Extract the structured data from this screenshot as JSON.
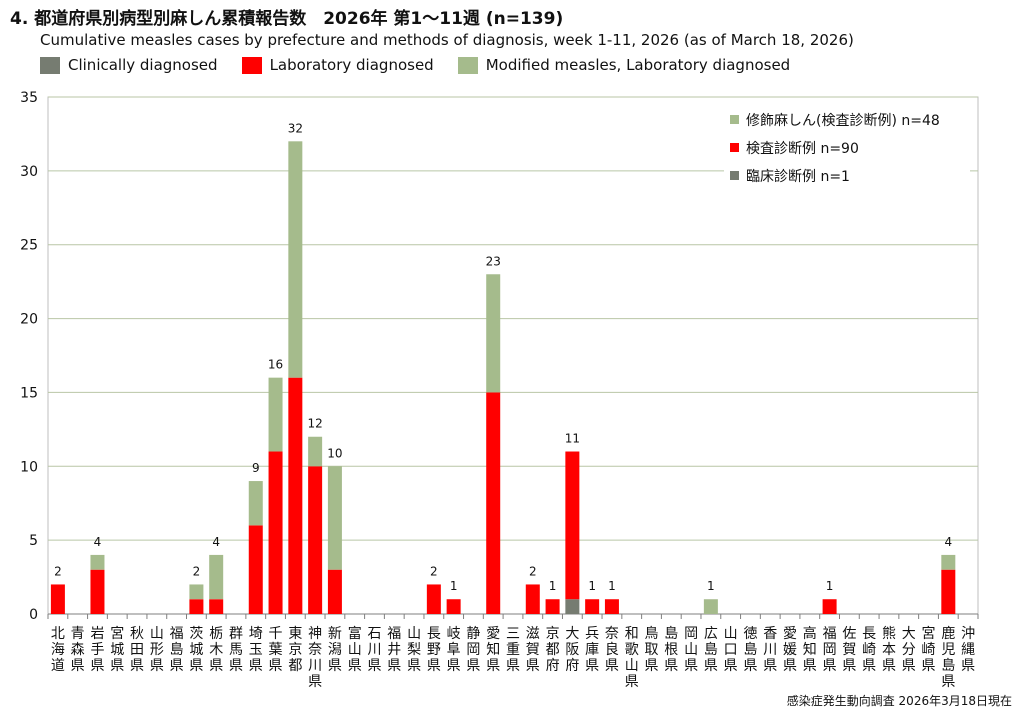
{
  "header": {
    "title": "4. 都道府県別病型別麻しん累積報告数　2026年 第1～11週 (n=139)",
    "subtitle": "Cumulative measles cases by prefecture and methods of diagnosis, week 1-11, 2026 (as of March 18, 2026)"
  },
  "legend_top": [
    {
      "label": "Clinically diagnosed",
      "color": "#767c71"
    },
    {
      "label": "Laboratory diagnosed",
      "color": "#ff0000"
    },
    {
      "label": "Modified measles, Laboratory diagnosed",
      "color": "#a5bb8c"
    }
  ],
  "footer": {
    "source": "感染症発生動向調査 2026年3月18日現在"
  },
  "chart_data": {
    "type": "bar",
    "stacked": true,
    "ylim": [
      0,
      35
    ],
    "yticks": [
      0,
      5,
      10,
      15,
      20,
      25,
      30,
      35
    ],
    "grid": true,
    "legend_position": "top-right",
    "categories": [
      "北海道",
      "青森県",
      "岩手県",
      "宮城県",
      "秋田県",
      "山形県",
      "福島県",
      "茨城県",
      "栃木県",
      "群馬県",
      "埼玉県",
      "千葉県",
      "東京都",
      "神奈川県",
      "新潟県",
      "富山県",
      "石川県",
      "福井県",
      "山梨県",
      "長野県",
      "岐阜県",
      "静岡県",
      "愛知県",
      "三重県",
      "滋賀県",
      "京都府",
      "大阪府",
      "兵庫県",
      "奈良県",
      "和歌山県",
      "鳥取県",
      "島根県",
      "岡山県",
      "広島県",
      "山口県",
      "徳島県",
      "香川県",
      "愛媛県",
      "高知県",
      "福岡県",
      "佐賀県",
      "長崎県",
      "熊本県",
      "大分県",
      "宮崎県",
      "鹿児島県",
      "沖縄県"
    ],
    "series": [
      {
        "name": "臨床診断例 n=1",
        "color": "#767c71",
        "values": [
          0,
          0,
          0,
          0,
          0,
          0,
          0,
          0,
          0,
          0,
          0,
          0,
          0,
          0,
          0,
          0,
          0,
          0,
          0,
          0,
          0,
          0,
          0,
          0,
          0,
          0,
          1,
          0,
          0,
          0,
          0,
          0,
          0,
          0,
          0,
          0,
          0,
          0,
          0,
          0,
          0,
          0,
          0,
          0,
          0,
          0,
          0
        ]
      },
      {
        "name": "検査診断例 n=90",
        "color": "#ff0000",
        "values": [
          2,
          0,
          3,
          0,
          0,
          0,
          0,
          1,
          1,
          0,
          6,
          11,
          16,
          10,
          3,
          0,
          0,
          0,
          0,
          2,
          1,
          0,
          15,
          0,
          2,
          1,
          10,
          1,
          1,
          0,
          0,
          0,
          0,
          0,
          0,
          0,
          0,
          0,
          0,
          1,
          0,
          0,
          0,
          0,
          0,
          3,
          0
        ]
      },
      {
        "name": "修飾麻しん(検査診断例) n=48",
        "color": "#a5bb8c",
        "values": [
          0,
          0,
          1,
          0,
          0,
          0,
          0,
          1,
          3,
          0,
          3,
          5,
          16,
          2,
          7,
          0,
          0,
          0,
          0,
          0,
          0,
          0,
          8,
          0,
          0,
          0,
          0,
          0,
          0,
          0,
          0,
          0,
          0,
          1,
          0,
          0,
          0,
          0,
          0,
          0,
          0,
          0,
          0,
          0,
          0,
          1,
          0
        ]
      }
    ],
    "totals": [
      2,
      0,
      4,
      0,
      0,
      0,
      0,
      2,
      4,
      0,
      9,
      16,
      32,
      12,
      10,
      0,
      0,
      0,
      0,
      2,
      1,
      0,
      23,
      0,
      2,
      1,
      11,
      1,
      1,
      0,
      0,
      0,
      0,
      1,
      0,
      0,
      0,
      0,
      0,
      1,
      0,
      0,
      0,
      0,
      0,
      4,
      0
    ],
    "inner_legend_order": [
      2,
      1,
      0
    ]
  }
}
